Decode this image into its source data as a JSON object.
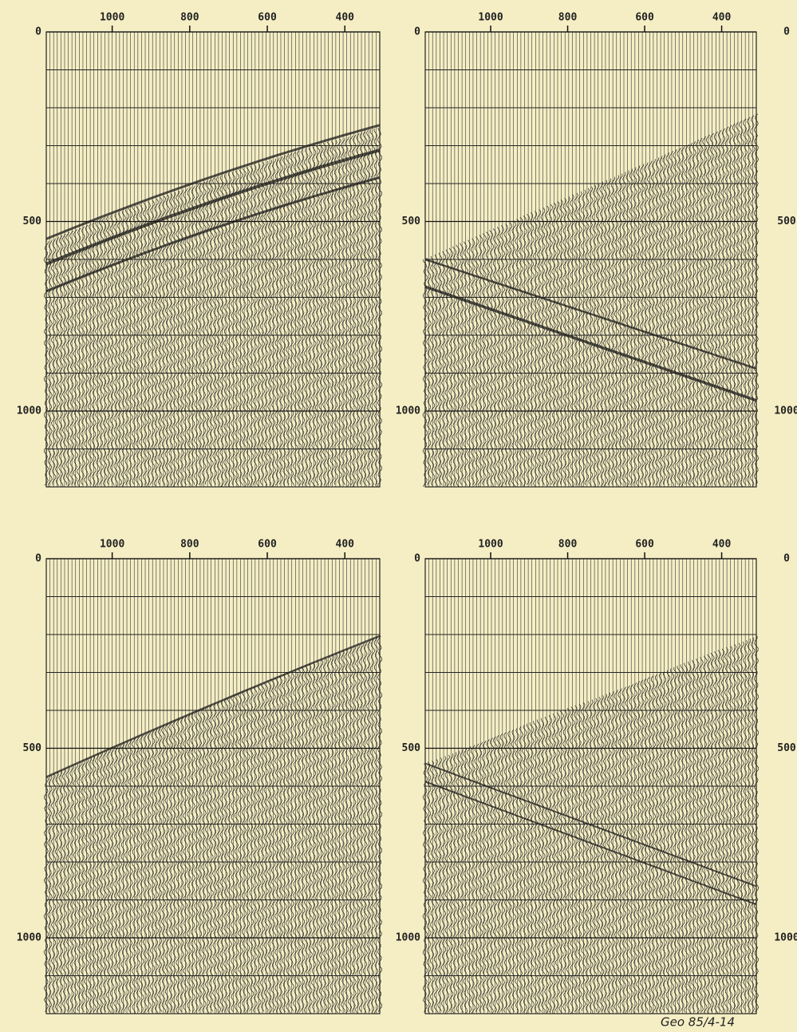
{
  "chart_data": [
    {
      "type": "seismic",
      "xlim": [
        1170,
        310
      ],
      "ylim": [
        0,
        1200
      ],
      "xticks": [
        1000,
        800,
        600,
        400
      ],
      "yticks": [
        0,
        500,
        1000
      ]
    },
    {
      "type": "seismic",
      "xlim": [
        1170,
        310
      ],
      "ylim": [
        0,
        1200
      ],
      "xticks": [
        1000,
        800,
        600,
        400
      ],
      "yticks": [
        0,
        500,
        1000
      ]
    },
    {
      "type": "seismic",
      "xlim": [
        1170,
        310
      ],
      "ylim": [
        0,
        1200
      ],
      "xticks": [
        1000,
        800,
        600,
        400
      ],
      "yticks": [
        0,
        500,
        1000
      ]
    },
    {
      "type": "seismic",
      "xlim": [
        1170,
        310
      ],
      "ylim": [
        0,
        1200
      ],
      "xticks": [
        1000,
        800,
        600,
        400
      ],
      "yticks": [
        0,
        500,
        1000
      ]
    }
  ],
  "caption": "Geo 85/4-14"
}
